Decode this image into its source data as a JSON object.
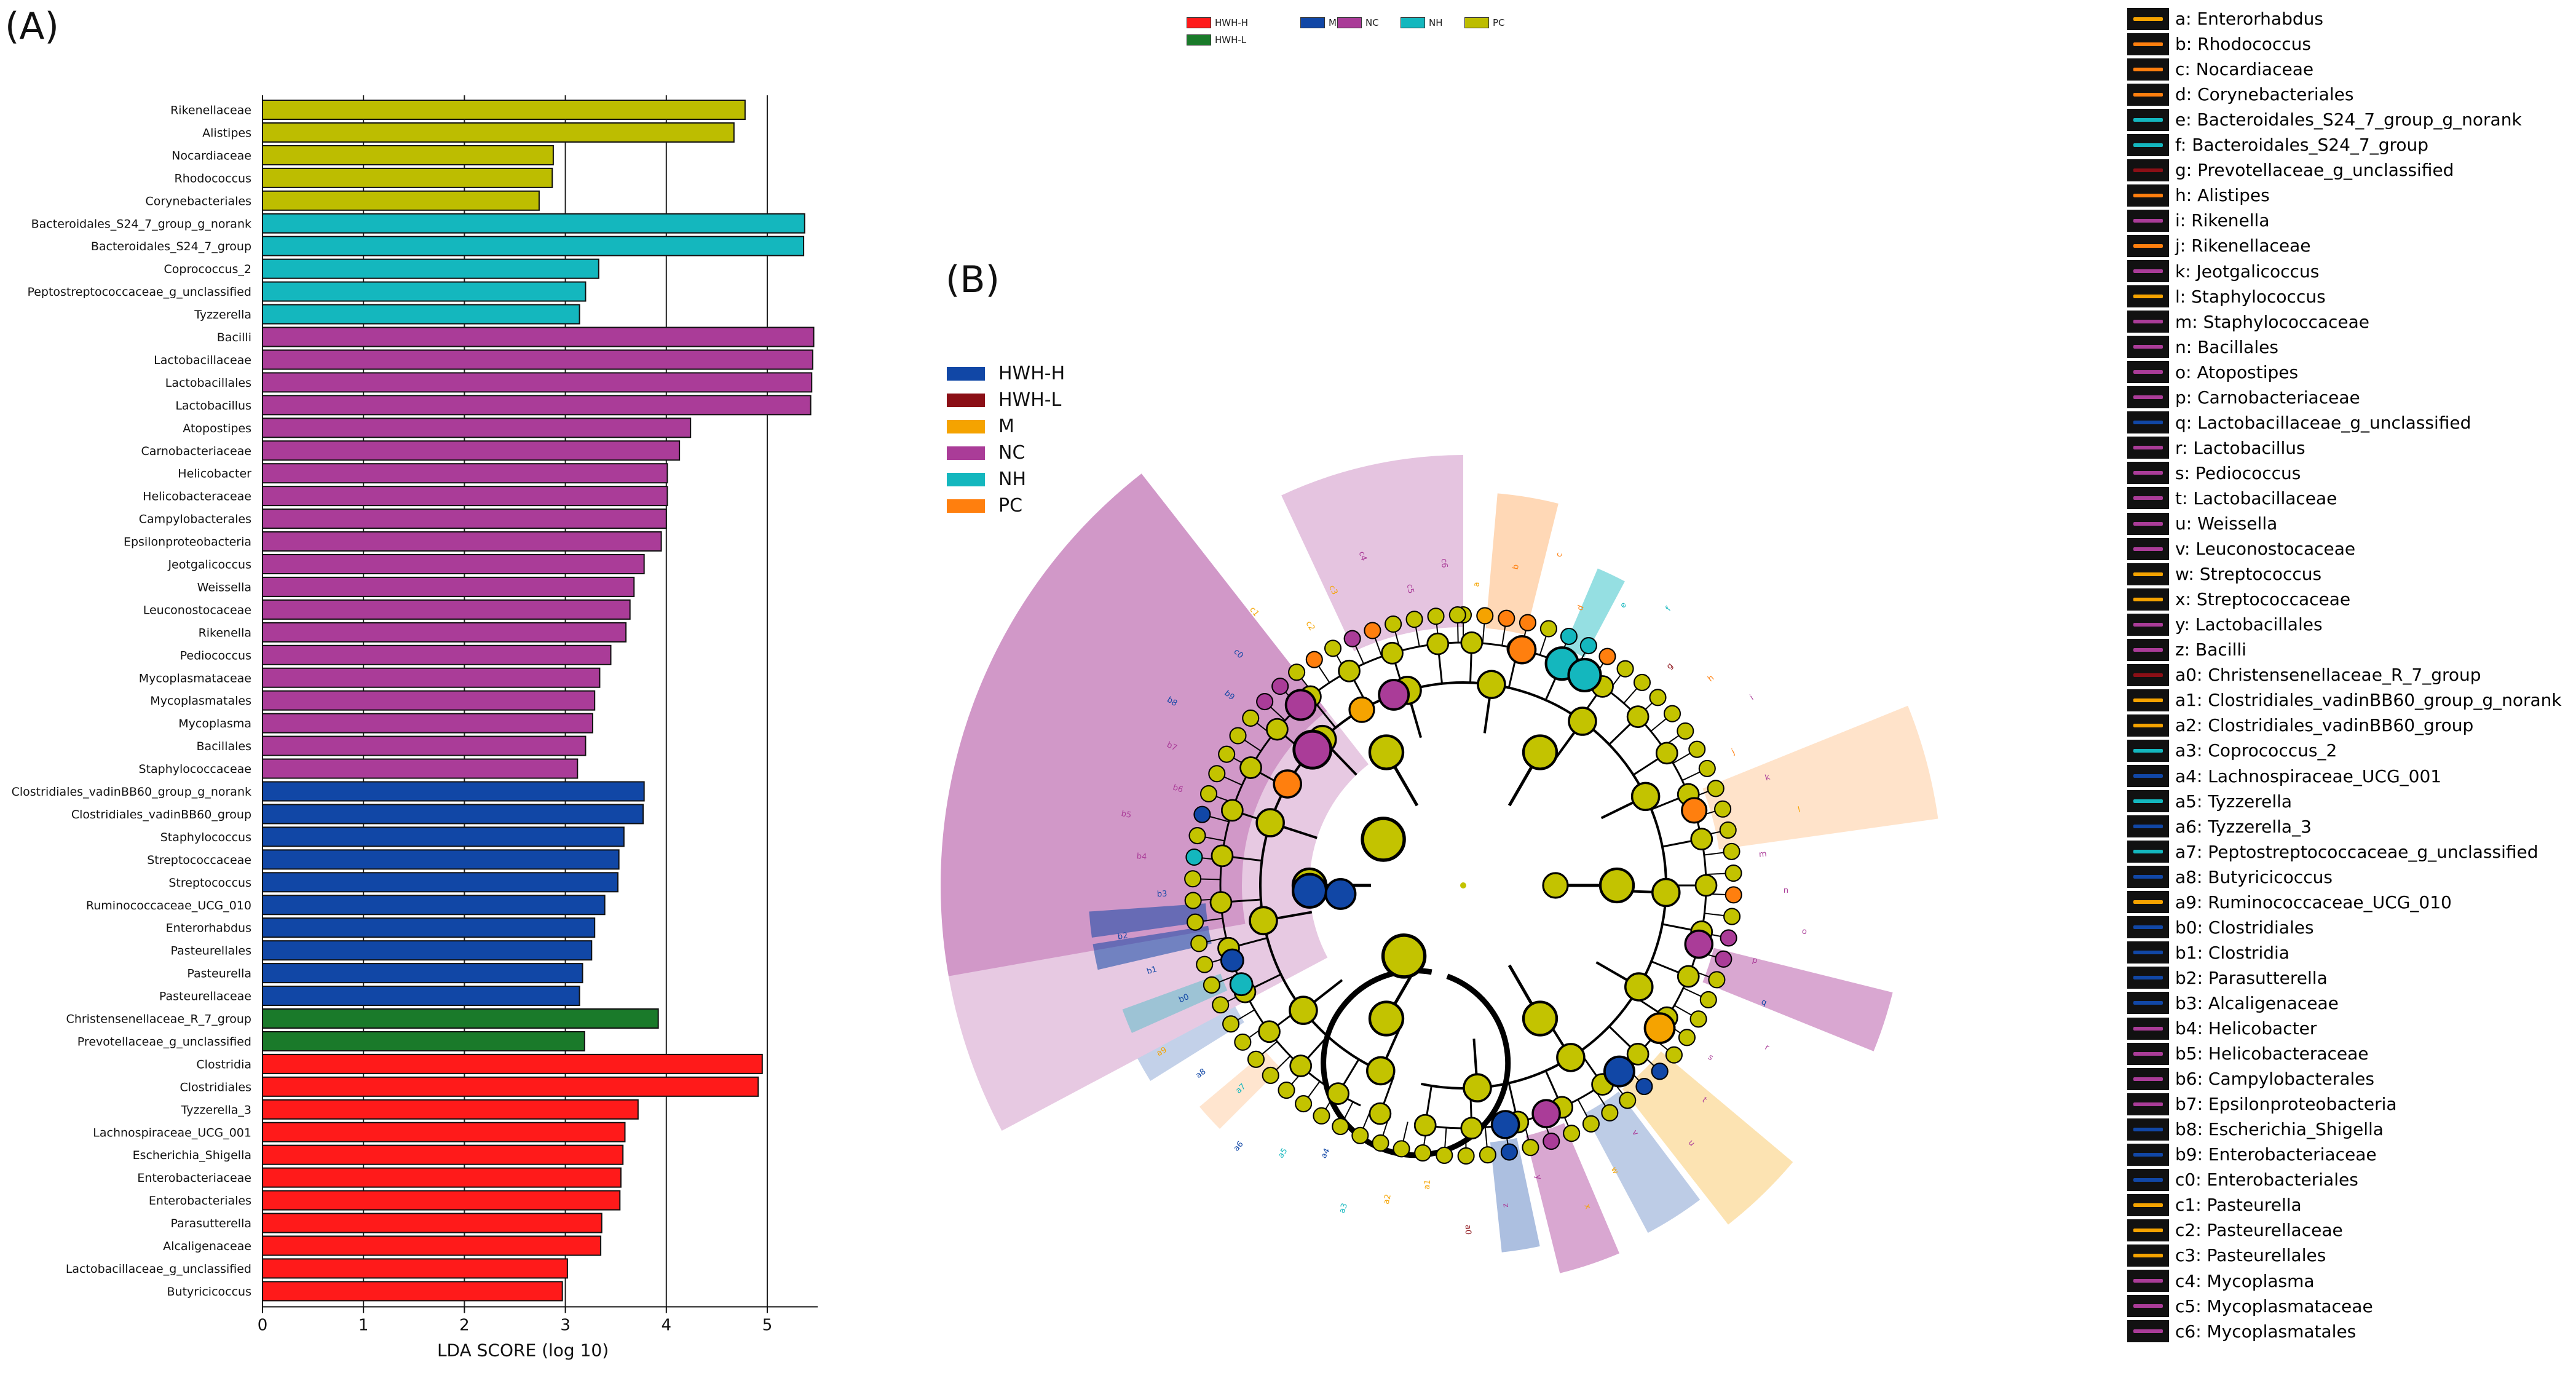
{
  "panel_labels": {
    "a": "(A)",
    "b": "(B)"
  },
  "colors": {
    "HWH-H": "#1147a6",
    "HWH-L": "#8b0f16",
    "M": "#f5a300",
    "NC": "#aa3c98",
    "NH": "#14b7be",
    "PC": "#ff7f0e",
    "bar_PC": "#bdbd00",
    "bar_NH": "#14b7be",
    "bar_NC": "#aa3c98",
    "bar_M": "#1147a6",
    "bar_HWH-L": "#1a7a2a",
    "bar_HWH-H": "#ff1a1a",
    "node": "#c3c300"
  },
  "top_legend": [
    {
      "label": "HWH-H",
      "color": "#ff1a1a"
    },
    {
      "label": "M",
      "color": "#1147a6"
    },
    {
      "label": "NC",
      "color": "#aa3c98"
    },
    {
      "label": "NH",
      "color": "#14b7be"
    },
    {
      "label": "PC",
      "color": "#bdbd00"
    },
    {
      "label": "HWH-L",
      "color": "#1a7a2a"
    }
  ],
  "cladogram_legend": [
    {
      "label": "HWH-H",
      "color": "#1147a6"
    },
    {
      "label": "HWH-L",
      "color": "#8b0f16"
    },
    {
      "label": "M",
      "color": "#f5a300"
    },
    {
      "label": "NC",
      "color": "#aa3c98"
    },
    {
      "label": "NH",
      "color": "#14b7be"
    },
    {
      "label": "PC",
      "color": "#ff7f0e"
    }
  ],
  "chart_data": [
    {
      "type": "bar",
      "orientation": "horizontal",
      "xlabel": "LDA SCORE (log 10)",
      "xlim": [
        0,
        5.5
      ],
      "xticks": [
        0,
        1,
        2,
        3,
        4,
        5
      ],
      "grid": "vertical",
      "bars": [
        {
          "label": "Rikenellaceae",
          "value": 4.78,
          "group": "PC"
        },
        {
          "label": "Alistipes",
          "value": 4.67,
          "group": "PC"
        },
        {
          "label": "Nocardiaceae",
          "value": 2.88,
          "group": "PC"
        },
        {
          "label": "Rhodococcus",
          "value": 2.87,
          "group": "PC"
        },
        {
          "label": "Corynebacteriales",
          "value": 2.74,
          "group": "PC"
        },
        {
          "label": "Bacteroidales_S24_7_group_g_norank",
          "value": 5.37,
          "group": "NH"
        },
        {
          "label": "Bacteroidales_S24_7_group",
          "value": 5.36,
          "group": "NH"
        },
        {
          "label": "Coprococcus_2",
          "value": 3.33,
          "group": "NH"
        },
        {
          "label": "Peptostreptococcaceae_g_unclassified",
          "value": 3.2,
          "group": "NH"
        },
        {
          "label": "Tyzzerella",
          "value": 3.14,
          "group": "NH"
        },
        {
          "label": "Bacilli",
          "value": 5.46,
          "group": "NC"
        },
        {
          "label": "Lactobacillaceae",
          "value": 5.45,
          "group": "NC"
        },
        {
          "label": "Lactobacillales",
          "value": 5.44,
          "group": "NC"
        },
        {
          "label": "Lactobacillus",
          "value": 5.43,
          "group": "NC"
        },
        {
          "label": "Atopostipes",
          "value": 4.24,
          "group": "NC"
        },
        {
          "label": "Carnobacteriaceae",
          "value": 4.13,
          "group": "NC"
        },
        {
          "label": "Helicobacter",
          "value": 4.01,
          "group": "NC"
        },
        {
          "label": "Helicobacteraceae",
          "value": 4.01,
          "group": "NC"
        },
        {
          "label": "Campylobacterales",
          "value": 4.0,
          "group": "NC"
        },
        {
          "label": "Epsilonproteobacteria",
          "value": 3.95,
          "group": "NC"
        },
        {
          "label": "Jeotgalicoccus",
          "value": 3.78,
          "group": "NC"
        },
        {
          "label": "Weissella",
          "value": 3.68,
          "group": "NC"
        },
        {
          "label": "Leuconostocaceae",
          "value": 3.64,
          "group": "NC"
        },
        {
          "label": "Rikenella",
          "value": 3.6,
          "group": "NC"
        },
        {
          "label": "Pediococcus",
          "value": 3.45,
          "group": "NC"
        },
        {
          "label": "Mycoplasmataceae",
          "value": 3.34,
          "group": "NC"
        },
        {
          "label": "Mycoplasmatales",
          "value": 3.29,
          "group": "NC"
        },
        {
          "label": "Mycoplasma",
          "value": 3.27,
          "group": "NC"
        },
        {
          "label": "Bacillales",
          "value": 3.2,
          "group": "NC"
        },
        {
          "label": "Staphylococcaceae",
          "value": 3.12,
          "group": "NC"
        },
        {
          "label": "Clostridiales_vadinBB60_group_g_norank",
          "value": 3.78,
          "group": "M"
        },
        {
          "label": "Clostridiales_vadinBB60_group",
          "value": 3.77,
          "group": "M"
        },
        {
          "label": "Staphylococcus",
          "value": 3.58,
          "group": "M"
        },
        {
          "label": "Streptococcaceae",
          "value": 3.53,
          "group": "M"
        },
        {
          "label": "Streptococcus",
          "value": 3.52,
          "group": "M"
        },
        {
          "label": "Ruminococcaceae_UCG_010",
          "value": 3.39,
          "group": "M"
        },
        {
          "label": "Enterorhabdus",
          "value": 3.29,
          "group": "M"
        },
        {
          "label": "Pasteurellales",
          "value": 3.26,
          "group": "M"
        },
        {
          "label": "Pasteurella",
          "value": 3.17,
          "group": "M"
        },
        {
          "label": "Pasteurellaceae",
          "value": 3.14,
          "group": "M"
        },
        {
          "label": "Christensenellaceae_R_7_group",
          "value": 3.92,
          "group": "HWH-L"
        },
        {
          "label": "Prevotellaceae_g_unclassified",
          "value": 3.19,
          "group": "HWH-L"
        },
        {
          "label": "Clostridia",
          "value": 4.95,
          "group": "HWH-H"
        },
        {
          "label": "Clostridiales",
          "value": 4.91,
          "group": "HWH-H"
        },
        {
          "label": "Tyzzerella_3",
          "value": 3.72,
          "group": "HWH-H"
        },
        {
          "label": "Lachnospiraceae_UCG_001",
          "value": 3.59,
          "group": "HWH-H"
        },
        {
          "label": "Escherichia_Shigella",
          "value": 3.57,
          "group": "HWH-H"
        },
        {
          "label": "Enterobacteriaceae",
          "value": 3.55,
          "group": "HWH-H"
        },
        {
          "label": "Enterobacteriales",
          "value": 3.54,
          "group": "HWH-H"
        },
        {
          "label": "Parasutterella",
          "value": 3.36,
          "group": "HWH-H"
        },
        {
          "label": "Alcaligenaceae",
          "value": 3.35,
          "group": "HWH-H"
        },
        {
          "label": "Lactobacillaceae_g_unclassified",
          "value": 3.02,
          "group": "HWH-H"
        },
        {
          "label": "Butyricicoccus",
          "value": 2.97,
          "group": "HWH-H"
        }
      ]
    },
    {
      "type": "cladogram",
      "title": "",
      "taxa_key": [
        {
          "key": "a",
          "name": "Enterorhabdus",
          "group": "M"
        },
        {
          "key": "b",
          "name": "Rhodococcus",
          "group": "PC"
        },
        {
          "key": "c",
          "name": "Nocardiaceae",
          "group": "PC"
        },
        {
          "key": "d",
          "name": "Corynebacteriales",
          "group": "PC"
        },
        {
          "key": "e",
          "name": "Bacteroidales_S24_7_group_g_norank",
          "group": "NH"
        },
        {
          "key": "f",
          "name": "Bacteroidales_S24_7_group",
          "group": "NH"
        },
        {
          "key": "g",
          "name": "Prevotellaceae_g_unclassified",
          "group": "HWH-L"
        },
        {
          "key": "h",
          "name": "Alistipes",
          "group": "PC"
        },
        {
          "key": "i",
          "name": "Rikenella",
          "group": "NC"
        },
        {
          "key": "j",
          "name": "Rikenellaceae",
          "group": "PC"
        },
        {
          "key": "k",
          "name": "Jeotgalicoccus",
          "group": "NC"
        },
        {
          "key": "l",
          "name": "Staphylococcus",
          "group": "M"
        },
        {
          "key": "m",
          "name": "Staphylococcaceae",
          "group": "NC"
        },
        {
          "key": "n",
          "name": "Bacillales",
          "group": "NC"
        },
        {
          "key": "o",
          "name": "Atopostipes",
          "group": "NC"
        },
        {
          "key": "p",
          "name": "Carnobacteriaceae",
          "group": "NC"
        },
        {
          "key": "q",
          "name": "Lactobacillaceae_g_unclassified",
          "group": "HWH-H"
        },
        {
          "key": "r",
          "name": "Lactobacillus",
          "group": "NC"
        },
        {
          "key": "s",
          "name": "Pediococcus",
          "group": "NC"
        },
        {
          "key": "t",
          "name": "Lactobacillaceae",
          "group": "NC"
        },
        {
          "key": "u",
          "name": "Weissella",
          "group": "NC"
        },
        {
          "key": "v",
          "name": "Leuconostocaceae",
          "group": "NC"
        },
        {
          "key": "w",
          "name": "Streptococcus",
          "group": "M"
        },
        {
          "key": "x",
          "name": "Streptococcaceae",
          "group": "M"
        },
        {
          "key": "y",
          "name": "Lactobacillales",
          "group": "NC"
        },
        {
          "key": "z",
          "name": "Bacilli",
          "group": "NC"
        },
        {
          "key": "a0",
          "name": "Christensenellaceae_R_7_group",
          "group": "HWH-L"
        },
        {
          "key": "a1",
          "name": "Clostridiales_vadinBB60_group_g_norank",
          "group": "M"
        },
        {
          "key": "a2",
          "name": "Clostridiales_vadinBB60_group",
          "group": "M"
        },
        {
          "key": "a3",
          "name": "Coprococcus_2",
          "group": "NH"
        },
        {
          "key": "a4",
          "name": "Lachnospiraceae_UCG_001",
          "group": "HWH-H"
        },
        {
          "key": "a5",
          "name": "Tyzzerella",
          "group": "NH"
        },
        {
          "key": "a6",
          "name": "Tyzzerella_3",
          "group": "HWH-H"
        },
        {
          "key": "a7",
          "name": "Peptostreptococcaceae_g_unclassified",
          "group": "NH"
        },
        {
          "key": "a8",
          "name": "Butyricicoccus",
          "group": "HWH-H"
        },
        {
          "key": "a9",
          "name": "Ruminococcaceae_UCG_010",
          "group": "M"
        },
        {
          "key": "b0",
          "name": "Clostridiales",
          "group": "HWH-H"
        },
        {
          "key": "b1",
          "name": "Clostridia",
          "group": "HWH-H"
        },
        {
          "key": "b2",
          "name": "Parasutterella",
          "group": "HWH-H"
        },
        {
          "key": "b3",
          "name": "Alcaligenaceae",
          "group": "HWH-H"
        },
        {
          "key": "b4",
          "name": "Helicobacter",
          "group": "NC"
        },
        {
          "key": "b5",
          "name": "Helicobacteraceae",
          "group": "NC"
        },
        {
          "key": "b6",
          "name": "Campylobacterales",
          "group": "NC"
        },
        {
          "key": "b7",
          "name": "Epsilonproteobacteria",
          "group": "NC"
        },
        {
          "key": "b8",
          "name": "Escherichia_Shigella",
          "group": "HWH-H"
        },
        {
          "key": "b9",
          "name": "Enterobacteriaceae",
          "group": "HWH-H"
        },
        {
          "key": "c0",
          "name": "Enterobacteriales",
          "group": "HWH-H"
        },
        {
          "key": "c1",
          "name": "Pasteurella",
          "group": "M"
        },
        {
          "key": "c2",
          "name": "Pasteurellaceae",
          "group": "M"
        },
        {
          "key": "c3",
          "name": "Pasteurellales",
          "group": "M"
        },
        {
          "key": "c4",
          "name": "Mycoplasma",
          "group": "NC"
        },
        {
          "key": "c5",
          "name": "Mycoplasmataceae",
          "group": "NC"
        },
        {
          "key": "c6",
          "name": "Mycoplasmatales",
          "group": "NC"
        }
      ]
    }
  ]
}
